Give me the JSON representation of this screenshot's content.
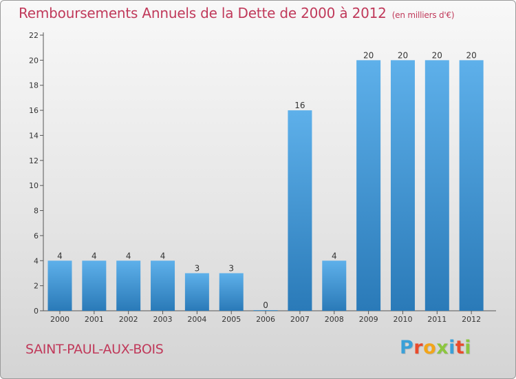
{
  "header": {
    "title": "Remboursements Annuels de la Dette de 2000 à 2012",
    "subtitle": "(en milliers d'€)"
  },
  "footer": {
    "town": "SAINT-PAUL-AUX-BOIS",
    "logo_letters": [
      "P",
      "r",
      "o",
      "x",
      "i",
      "t",
      "i"
    ],
    "logo_colors": [
      "#3aa0d8",
      "#e94b2c",
      "#f2a51a",
      "#8cc63f",
      "#3aa0d8",
      "#e94b2c",
      "#8cc63f"
    ]
  },
  "chart_data": {
    "type": "bar",
    "title": "Remboursements Annuels de la Dette de 2000 à 2012",
    "xlabel": "",
    "ylabel": "",
    "categories": [
      "2000",
      "2001",
      "2002",
      "2003",
      "2004",
      "2005",
      "2006",
      "2007",
      "2008",
      "2009",
      "2010",
      "2011",
      "2012"
    ],
    "values": [
      4,
      4,
      4,
      4,
      3,
      3,
      0,
      16,
      4,
      20,
      20,
      20,
      20
    ],
    "data_labels": [
      "4",
      "4",
      "4",
      "4",
      "3",
      "3",
      "0",
      "16",
      "4",
      "20",
      "20",
      "20",
      "20"
    ],
    "ylim": [
      0,
      22
    ],
    "yticks": [
      0,
      2,
      4,
      6,
      8,
      10,
      12,
      14,
      16,
      18,
      20,
      22
    ],
    "grid": false,
    "colors": {
      "bar_top": "#5eb0ea",
      "bar_bottom": "#2a7ab8",
      "axis": "#555555",
      "text": "#333333"
    }
  }
}
